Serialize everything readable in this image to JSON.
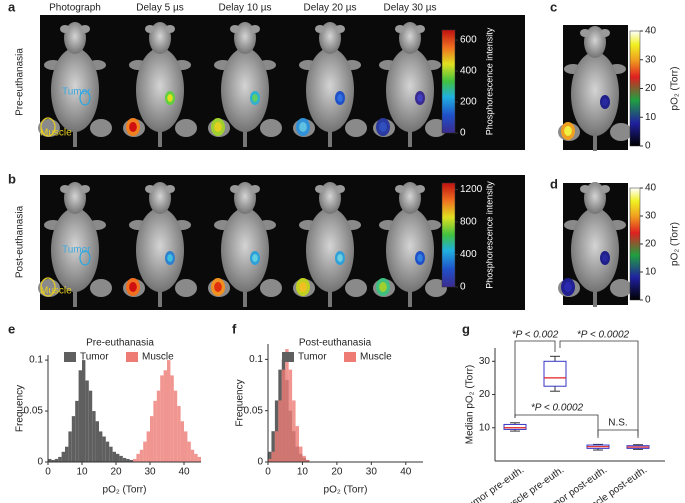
{
  "panels": [
    {
      "letter": "a",
      "row_label": "Pre-euthanasia",
      "columns": [
        "Photograph",
        "Delay 5 µs",
        "Delay 10 µs",
        "Delay 20 µs",
        "Delay 30 µs"
      ],
      "regions": [
        "Tumor",
        "Muscle"
      ],
      "colorbar": {
        "label": "Phosphorescence intensity",
        "lim": [
          0,
          665
        ],
        "ticks": [
          0,
          200,
          400,
          600
        ]
      }
    },
    {
      "letter": "b",
      "row_label": "Post-euthanasia",
      "regions": [
        "Tumor",
        "Muscle"
      ],
      "colorbar": {
        "label": "Phosphorescence intensity",
        "lim": [
          0,
          1280
        ],
        "ticks": [
          0,
          400,
          800,
          1200
        ]
      }
    },
    {
      "letter": "c",
      "row_label": "Pre-euthanasia",
      "colorbar": {
        "label": "pO₂ (Torr)",
        "lim": [
          0,
          40
        ],
        "ticks": [
          0,
          10,
          20,
          30,
          40
        ]
      }
    },
    {
      "letter": "d",
      "row_label": "Post-euthanasia",
      "colorbar": {
        "label": "pO₂ (Torr)",
        "lim": [
          0,
          40
        ],
        "ticks": [
          0,
          10,
          20,
          30,
          40
        ]
      }
    }
  ],
  "chart_data": [
    {
      "type": "histogram",
      "panel": "e",
      "title": "Pre-euthanasia",
      "xlabel": "pO₂ (Torr)",
      "ylabel": "Frequency",
      "bins": [
        0,
        1,
        2,
        3,
        4,
        5,
        6,
        7,
        8,
        9,
        10,
        11,
        12,
        13,
        14,
        15,
        16,
        17,
        18,
        19,
        20,
        21,
        22,
        23,
        24,
        25,
        26,
        27,
        28,
        29,
        30,
        31,
        32,
        33,
        34,
        35,
        36,
        37,
        38,
        39,
        40,
        41,
        42,
        43,
        44,
        45
      ],
      "series": [
        {
          "name": "Tumor",
          "color": "#5f5f5f",
          "values": [
            0.003,
            0.002,
            0.003,
            0.005,
            0.01,
            0.015,
            0.03,
            0.045,
            0.06,
            0.09,
            0.1,
            0.08,
            0.07,
            0.05,
            0.04,
            0.03,
            0.025,
            0.02,
            0.015,
            0.01,
            0.008,
            0.006,
            0.004,
            0.003,
            0.002,
            0,
            0,
            0,
            0,
            0,
            0,
            0,
            0,
            0,
            0,
            0,
            0,
            0,
            0,
            0,
            0,
            0,
            0,
            0,
            0
          ]
        },
        {
          "name": "Muscle",
          "color": "#ee7b74",
          "values": [
            0,
            0,
            0,
            0,
            0,
            0,
            0,
            0,
            0,
            0,
            0,
            0,
            0,
            0,
            0,
            0,
            0,
            0,
            0,
            0,
            0,
            0,
            0,
            0,
            0,
            0.003,
            0.008,
            0.012,
            0.02,
            0.03,
            0.045,
            0.06,
            0.07,
            0.085,
            0.09,
            0.1,
            0.085,
            0.07,
            0.055,
            0.04,
            0.03,
            0.02,
            0.012,
            0.008,
            0.005
          ]
        }
      ],
      "xlim": [
        0,
        45
      ],
      "xticks": [
        0,
        10,
        20,
        30,
        40
      ],
      "ylim": [
        0,
        0.105
      ],
      "yticks": [
        0,
        0.05,
        0.1
      ]
    },
    {
      "type": "histogram",
      "panel": "f",
      "title": "Post-euthanasia",
      "xlabel": "pO₂ (Torr)",
      "ylabel": "Frequency",
      "bins": [
        0,
        1,
        2,
        3,
        4,
        5,
        6,
        7,
        8,
        9,
        10,
        11,
        12,
        13,
        14,
        15,
        16,
        17,
        18,
        19,
        20,
        21,
        22,
        23,
        24,
        25,
        26,
        27,
        28,
        29,
        30,
        31,
        32,
        33,
        34,
        35,
        36,
        37,
        38,
        39,
        40,
        41,
        42,
        43,
        44,
        45
      ],
      "series": [
        {
          "name": "Tumor",
          "color": "#5f5f5f",
          "values": [
            0.01,
            0.03,
            0.06,
            0.09,
            0.1,
            0.08,
            0.05,
            0.03,
            0.015,
            0.008,
            0.004,
            0.002,
            0,
            0,
            0,
            0,
            0,
            0,
            0,
            0,
            0,
            0,
            0,
            0,
            0,
            0,
            0,
            0,
            0,
            0,
            0,
            0,
            0,
            0,
            0,
            0,
            0,
            0,
            0,
            0,
            0,
            0,
            0,
            0,
            0
          ]
        },
        {
          "name": "Muscle",
          "color": "#ee7b74",
          "values": [
            0.003,
            0.01,
            0.03,
            0.06,
            0.09,
            0.11,
            0.09,
            0.06,
            0.035,
            0.015,
            0.006,
            0.002,
            0,
            0,
            0,
            0,
            0,
            0,
            0,
            0,
            0,
            0,
            0,
            0,
            0,
            0,
            0,
            0,
            0,
            0,
            0,
            0,
            0,
            0,
            0,
            0,
            0,
            0,
            0,
            0,
            0,
            0,
            0,
            0,
            0
          ]
        }
      ],
      "xlim": [
        0,
        45
      ],
      "xticks": [
        0,
        10,
        20,
        30,
        40
      ],
      "ylim": [
        0,
        0.115
      ],
      "yticks": [
        0,
        0.05,
        0.1
      ]
    },
    {
      "type": "box",
      "panel": "g",
      "ylabel": "Median pO₂ (Torr)",
      "categories": [
        "Tumor pre-euth.",
        "Muscle pre-euth.",
        "Tumor post-euth.",
        "Muscle post-euth."
      ],
      "boxes": [
        {
          "min": 9,
          "q1": 9.5,
          "median": 10,
          "q3": 11,
          "max": 11.5
        },
        {
          "min": 21,
          "q1": 22.5,
          "median": 25,
          "q3": 30,
          "max": 31.5
        },
        {
          "min": 3.3,
          "q1": 3.8,
          "median": 4.3,
          "q3": 4.8,
          "max": 5
        },
        {
          "min": 3.5,
          "q1": 3.8,
          "median": 4.2,
          "q3": 4.6,
          "max": 4.9
        }
      ],
      "color": "#3535c8",
      "median_color": "#e02020",
      "annotations": [
        "*P < 0.002",
        "*P < 0.0002",
        "*P < 0.0002",
        "N.S."
      ],
      "ylim": [
        0,
        34
      ],
      "yticks": [
        10,
        20,
        30
      ]
    }
  ]
}
